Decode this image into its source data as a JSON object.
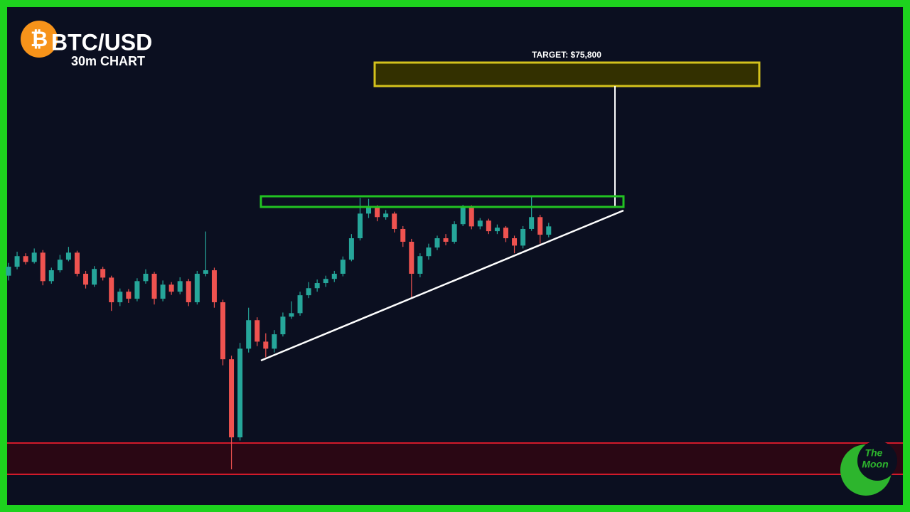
{
  "chart_data": {
    "type": "candlestick",
    "title": "BTC/USD",
    "subtitle": "30m CHART",
    "logo_symbol": "₿",
    "annotation": "TARGET: $75,800",
    "brand": [
      "The",
      "Moon"
    ],
    "up_color": "#26a69a",
    "down_color": "#ef5350",
    "ylim": [
      62340,
      77890
    ],
    "candles": [
      [
        69500,
        69900,
        69350,
        69780
      ],
      [
        69780,
        70250,
        69700,
        70110
      ],
      [
        70110,
        70200,
        69850,
        69930
      ],
      [
        69930,
        70350,
        69880,
        70220
      ],
      [
        70220,
        70300,
        69200,
        69330
      ],
      [
        69330,
        69750,
        69250,
        69670
      ],
      [
        69670,
        70150,
        69600,
        70000
      ],
      [
        70000,
        70400,
        69950,
        70220
      ],
      [
        70220,
        70280,
        69480,
        69560
      ],
      [
        69560,
        69650,
        69100,
        69220
      ],
      [
        69220,
        69800,
        69150,
        69710
      ],
      [
        69710,
        69780,
        69350,
        69440
      ],
      [
        69440,
        69500,
        68400,
        68670
      ],
      [
        68670,
        69100,
        68550,
        69000
      ],
      [
        69000,
        69080,
        68650,
        68780
      ],
      [
        68780,
        69420,
        68700,
        69330
      ],
      [
        69330,
        69700,
        69250,
        69560
      ],
      [
        69560,
        69620,
        68600,
        68780
      ],
      [
        68780,
        69350,
        68700,
        69220
      ],
      [
        69220,
        69300,
        68900,
        69000
      ],
      [
        69000,
        69450,
        68920,
        69330
      ],
      [
        69330,
        69400,
        68550,
        68670
      ],
      [
        68670,
        69650,
        68600,
        69560
      ],
      [
        69560,
        70880,
        69480,
        69670
      ],
      [
        69670,
        69750,
        68500,
        68670
      ],
      [
        68670,
        68750,
        66700,
        66890
      ],
      [
        66890,
        67000,
        63450,
        64450
      ],
      [
        64450,
        67400,
        64350,
        67220
      ],
      [
        67220,
        68500,
        67100,
        68110
      ],
      [
        68110,
        68200,
        67300,
        67440
      ],
      [
        67440,
        67700,
        66950,
        67220
      ],
      [
        67220,
        67800,
        67100,
        67670
      ],
      [
        67670,
        68350,
        67600,
        68220
      ],
      [
        68220,
        68700,
        68150,
        68330
      ],
      [
        68330,
        69000,
        68250,
        68890
      ],
      [
        68890,
        69300,
        68800,
        69110
      ],
      [
        69110,
        69380,
        69000,
        69270
      ],
      [
        69270,
        69500,
        69150,
        69400
      ],
      [
        69400,
        69650,
        69300,
        69560
      ],
      [
        69560,
        70100,
        69480,
        70000
      ],
      [
        70000,
        70800,
        69950,
        70670
      ],
      [
        70670,
        71930,
        70600,
        71440
      ],
      [
        71440,
        71900,
        71300,
        71620
      ],
      [
        71620,
        71700,
        71200,
        71330
      ],
      [
        71330,
        71550,
        71250,
        71440
      ],
      [
        71440,
        71500,
        70850,
        70960
      ],
      [
        70960,
        71050,
        70400,
        70560
      ],
      [
        70560,
        70650,
        68780,
        69560
      ],
      [
        69560,
        70200,
        69450,
        70110
      ],
      [
        70110,
        70500,
        70000,
        70380
      ],
      [
        70380,
        70750,
        70300,
        70670
      ],
      [
        70670,
        70800,
        70450,
        70560
      ],
      [
        70560,
        71200,
        70500,
        71110
      ],
      [
        71110,
        71710,
        71050,
        71620
      ],
      [
        71620,
        71700,
        70950,
        71040
      ],
      [
        71040,
        71300,
        70950,
        71220
      ],
      [
        71220,
        71280,
        70800,
        70890
      ],
      [
        70890,
        71100,
        70800,
        71000
      ],
      [
        71000,
        71050,
        70550,
        70670
      ],
      [
        70670,
        70750,
        70200,
        70440
      ],
      [
        70440,
        71050,
        70350,
        70960
      ],
      [
        70960,
        72000,
        70900,
        71330
      ],
      [
        71330,
        71400,
        70500,
        70780
      ],
      [
        70780,
        71150,
        70700,
        71040
      ]
    ]
  }
}
